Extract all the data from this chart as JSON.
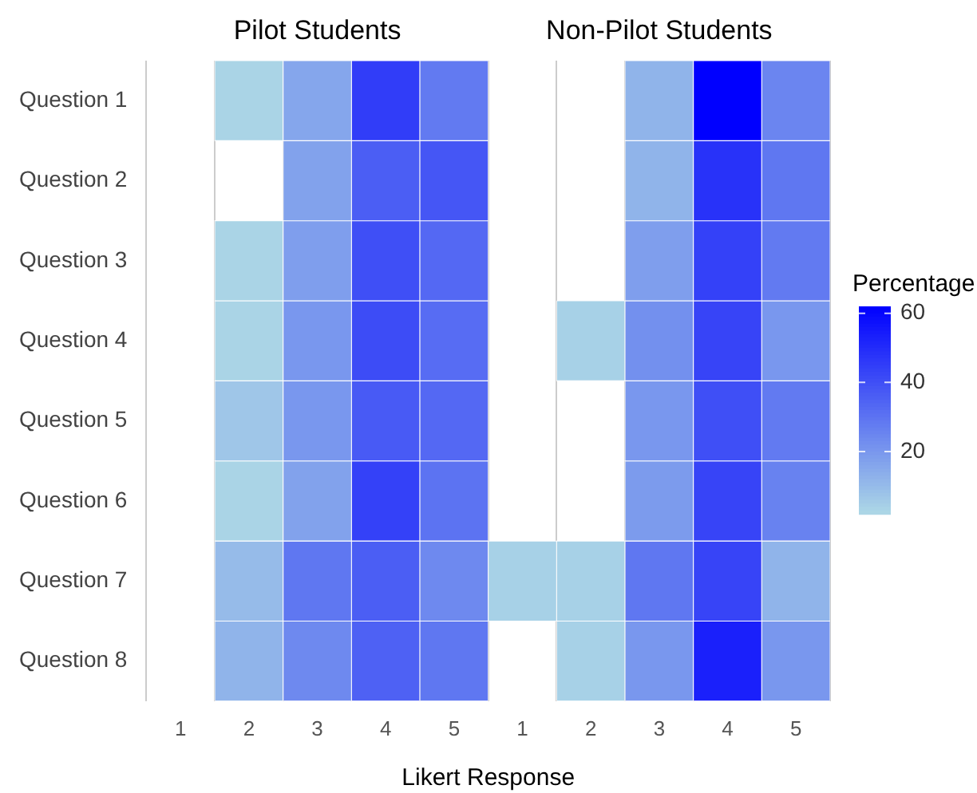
{
  "chart_data": {
    "type": "heatmap",
    "xlabel": "Likert Response",
    "clabel": "Percentage",
    "annotations": [
      "Pilot Students",
      "Non-Pilot Students"
    ],
    "categories": [
      "1",
      "2",
      "3",
      "4",
      "5",
      "1",
      "2",
      "3",
      "4",
      "5"
    ],
    "y_categories": [
      "Question 1",
      "Question 2",
      "Question 3",
      "Question 4",
      "Question 5",
      "Question 6",
      "Question 7",
      "Question 8"
    ],
    "cells": [
      [
        null,
        3,
        16,
        45,
        28,
        null,
        null,
        12,
        62,
        25
      ],
      [
        null,
        null,
        17,
        36,
        38,
        null,
        null,
        12,
        48,
        29
      ],
      [
        null,
        3,
        18,
        40,
        33,
        null,
        null,
        18,
        44,
        28
      ],
      [
        null,
        3,
        20,
        41,
        32,
        null,
        4,
        22,
        43,
        20
      ],
      [
        null,
        7,
        20,
        37,
        33,
        null,
        null,
        20,
        40,
        28
      ],
      [
        null,
        3,
        17,
        44,
        30,
        null,
        null,
        19,
        43,
        26
      ],
      [
        null,
        10,
        29,
        36,
        24,
        4,
        4,
        29,
        43,
        12
      ],
      [
        null,
        12,
        24,
        35,
        29,
        null,
        4,
        20,
        53,
        20
      ]
    ],
    "clim": [
      2,
      62
    ],
    "cticks": [
      20,
      40,
      60
    ],
    "grid": "x"
  }
}
